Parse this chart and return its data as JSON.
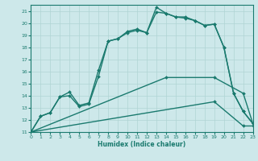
{
  "xlabel": "Humidex (Indice chaleur)",
  "xlim": [
    0,
    23
  ],
  "ylim": [
    11,
    21.5
  ],
  "yticks": [
    11,
    12,
    13,
    14,
    15,
    16,
    17,
    18,
    19,
    20,
    21
  ],
  "xticks": [
    0,
    1,
    2,
    3,
    4,
    5,
    6,
    7,
    8,
    9,
    10,
    11,
    12,
    13,
    14,
    15,
    16,
    17,
    18,
    19,
    20,
    21,
    22,
    23
  ],
  "bg_color": "#cde8ea",
  "grid_color": "#b0d4d4",
  "line_color": "#1a7a6e",
  "line_width": 1.0,
  "marker": "D",
  "marker_size": 2.0,
  "curves": [
    {
      "x": [
        0,
        1,
        2,
        3,
        4,
        5,
        6,
        7,
        8,
        9,
        10,
        11,
        12,
        13,
        14,
        15,
        16,
        17,
        18,
        19,
        20,
        21,
        22,
        23
      ],
      "y": [
        11.0,
        12.3,
        12.6,
        13.9,
        14.3,
        13.2,
        13.4,
        16.1,
        18.5,
        18.7,
        19.3,
        19.5,
        19.2,
        21.3,
        20.8,
        20.5,
        20.5,
        20.2,
        19.8,
        19.9,
        18.0,
        14.2,
        12.7,
        11.7
      ]
    },
    {
      "x": [
        0,
        1,
        2,
        3,
        4,
        5,
        6,
        7,
        8,
        9,
        10,
        11,
        12,
        13,
        14,
        15,
        16,
        17,
        18,
        19,
        20,
        21,
        22,
        23
      ],
      "y": [
        11.0,
        12.3,
        12.6,
        13.9,
        14.0,
        13.1,
        13.3,
        15.6,
        18.5,
        18.7,
        19.2,
        19.4,
        19.2,
        20.9,
        20.8,
        20.5,
        20.4,
        20.2,
        19.8,
        19.9,
        18.0,
        14.2,
        12.7,
        11.7
      ]
    },
    {
      "x": [
        0,
        14,
        19,
        22,
        23
      ],
      "y": [
        11.0,
        15.5,
        15.5,
        14.2,
        11.7
      ]
    },
    {
      "x": [
        0,
        19,
        22,
        23
      ],
      "y": [
        11.0,
        13.5,
        11.5,
        11.5
      ]
    }
  ]
}
